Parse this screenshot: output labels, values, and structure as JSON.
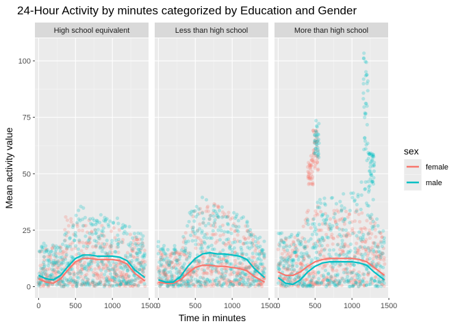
{
  "chart_data": {
    "type": "scatter",
    "title": "24-Hour Activity by minutes categorized by Education and Gender",
    "xlabel": "Time in minutes",
    "ylabel": "Mean activity value",
    "xlim": [
      -50,
      1490
    ],
    "ylim": [
      -5,
      110
    ],
    "x_ticks": [
      0,
      500,
      1000,
      1500
    ],
    "x_tick_labels": [
      "0",
      "500",
      "1000",
      "1500"
    ],
    "y_ticks": [
      0,
      25,
      50,
      75,
      100
    ],
    "y_tick_labels": [
      "0",
      "25",
      "50",
      "75",
      "100"
    ],
    "grid": true,
    "legend": {
      "title": "sex",
      "placement": "right",
      "entries": [
        {
          "name": "female",
          "color": "#F8766D"
        },
        {
          "name": "male",
          "color": "#00BFC4"
        }
      ]
    },
    "colors": {
      "female": "#F8766D",
      "male": "#00BFC4"
    },
    "panels": [
      {
        "label": "High school equivalent",
        "scatter_shape": {
          "female": [
            [
              0,
              8,
              18
            ],
            [
              300,
              8,
              18
            ],
            [
              350,
              8,
              30
            ],
            [
              420,
              10,
              34
            ],
            [
              600,
              12,
              30
            ],
            [
              900,
              12,
              28
            ],
            [
              1200,
              12,
              24
            ],
            [
              1440,
              8,
              20
            ]
          ],
          "male": [
            [
              0,
              10,
              20
            ],
            [
              300,
              10,
              18
            ],
            [
              400,
              14,
              28
            ],
            [
              560,
              16,
              38
            ],
            [
              700,
              16,
              32
            ],
            [
              1000,
              16,
              32
            ],
            [
              1200,
              14,
              28
            ],
            [
              1440,
              10,
              22
            ]
          ]
        },
        "smooth": {
          "female": [
            [
              0,
              3.5
            ],
            [
              100,
              2
            ],
            [
              200,
              1.5
            ],
            [
              300,
              3.5
            ],
            [
              400,
              7.5
            ],
            [
              500,
              11
            ],
            [
              600,
              12.5
            ],
            [
              700,
              12.5
            ],
            [
              800,
              12
            ],
            [
              900,
              12
            ],
            [
              1000,
              12
            ],
            [
              1100,
              11.5
            ],
            [
              1200,
              10
            ],
            [
              1300,
              6
            ],
            [
              1440,
              2.5
            ]
          ],
          "male": [
            [
              0,
              5
            ],
            [
              100,
              3.5
            ],
            [
              200,
              3
            ],
            [
              300,
              5
            ],
            [
              400,
              9
            ],
            [
              500,
              12.5
            ],
            [
              600,
              14
            ],
            [
              700,
              14
            ],
            [
              800,
              13.5
            ],
            [
              900,
              13.5
            ],
            [
              1000,
              13.5
            ],
            [
              1100,
              13
            ],
            [
              1200,
              11.5
            ],
            [
              1300,
              7.5
            ],
            [
              1440,
              4
            ]
          ]
        }
      },
      {
        "label": "Less than high school",
        "scatter_shape": {
          "female": [
            [
              0,
              8,
              16
            ],
            [
              300,
              8,
              16
            ],
            [
              420,
              12,
              30
            ],
            [
              600,
              14,
              40
            ],
            [
              800,
              14,
              36
            ],
            [
              1000,
              13,
              32
            ],
            [
              1200,
              12,
              28
            ],
            [
              1440,
              8,
              16
            ]
          ],
          "male": [
            [
              0,
              10,
              20
            ],
            [
              300,
              10,
              18
            ],
            [
              420,
              16,
              34
            ],
            [
              600,
              18,
              40
            ],
            [
              800,
              18,
              36
            ],
            [
              1000,
              17,
              34
            ],
            [
              1200,
              15,
              30
            ],
            [
              1440,
              10,
              20
            ]
          ]
        },
        "smooth": {
          "female": [
            [
              0,
              2
            ],
            [
              100,
              1.5
            ],
            [
              200,
              1.5
            ],
            [
              300,
              3
            ],
            [
              400,
              6
            ],
            [
              500,
              8.5
            ],
            [
              600,
              9.5
            ],
            [
              700,
              9.5
            ],
            [
              800,
              9
            ],
            [
              900,
              9
            ],
            [
              1000,
              8.5
            ],
            [
              1100,
              8
            ],
            [
              1200,
              7
            ],
            [
              1300,
              4.5
            ],
            [
              1440,
              2
            ]
          ],
          "male": [
            [
              0,
              3
            ],
            [
              100,
              2
            ],
            [
              200,
              2
            ],
            [
              300,
              4.5
            ],
            [
              400,
              9
            ],
            [
              500,
              12.5
            ],
            [
              600,
              14.5
            ],
            [
              700,
              15
            ],
            [
              800,
              14.5
            ],
            [
              900,
              14.5
            ],
            [
              1000,
              14
            ],
            [
              1100,
              13.5
            ],
            [
              1200,
              12
            ],
            [
              1300,
              8
            ],
            [
              1440,
              4
            ]
          ]
        }
      },
      {
        "label": "More than high school",
        "scatter_shape": {
          "female": [
            [
              0,
              10,
              22
            ],
            [
              300,
              10,
              22
            ],
            [
              380,
              14,
              34
            ],
            [
              500,
              16,
              36
            ],
            [
              700,
              16,
              34
            ],
            [
              900,
              16,
              34
            ],
            [
              1100,
              16,
              34
            ],
            [
              1300,
              14,
              30
            ],
            [
              1440,
              10,
              22
            ]
          ],
          "male": [
            [
              0,
              12,
              24
            ],
            [
              300,
              12,
              24
            ],
            [
              400,
              16,
              36
            ],
            [
              600,
              18,
              40
            ],
            [
              800,
              18,
              40
            ],
            [
              1000,
              18,
              44
            ],
            [
              1200,
              18,
              48
            ],
            [
              1440,
              12,
              24
            ]
          ]
        },
        "smooth": {
          "female": [
            [
              0,
              6.5
            ],
            [
              100,
              5
            ],
            [
              200,
              5
            ],
            [
              300,
              6.5
            ],
            [
              400,
              9
            ],
            [
              500,
              11
            ],
            [
              600,
              12
            ],
            [
              700,
              12.5
            ],
            [
              800,
              12.5
            ],
            [
              900,
              12.5
            ],
            [
              1000,
              12.5
            ],
            [
              1100,
              12
            ],
            [
              1200,
              11
            ],
            [
              1300,
              8.5
            ],
            [
              1440,
              5
            ]
          ],
          "male": [
            [
              0,
              4
            ],
            [
              100,
              1.5
            ],
            [
              200,
              1
            ],
            [
              300,
              3
            ],
            [
              400,
              6.5
            ],
            [
              500,
              9
            ],
            [
              600,
              10.5
            ],
            [
              700,
              11
            ],
            [
              800,
              11
            ],
            [
              900,
              11
            ],
            [
              1000,
              11
            ],
            [
              1100,
              10.5
            ],
            [
              1200,
              9.5
            ],
            [
              1300,
              6.5
            ],
            [
              1440,
              3
            ]
          ]
        },
        "spikes": {
          "female": [
            [
              400,
              470,
              45,
              58
            ],
            [
              470,
              540,
              50,
              72
            ]
          ],
          "male": [
            [
              490,
              550,
              55,
              74
            ],
            [
              1150,
              1210,
              55,
              104
            ],
            [
              1220,
              1300,
              40,
              60
            ]
          ]
        }
      }
    ],
    "point_alpha": 0.25,
    "point_density": 10,
    "random_seed": 42
  }
}
